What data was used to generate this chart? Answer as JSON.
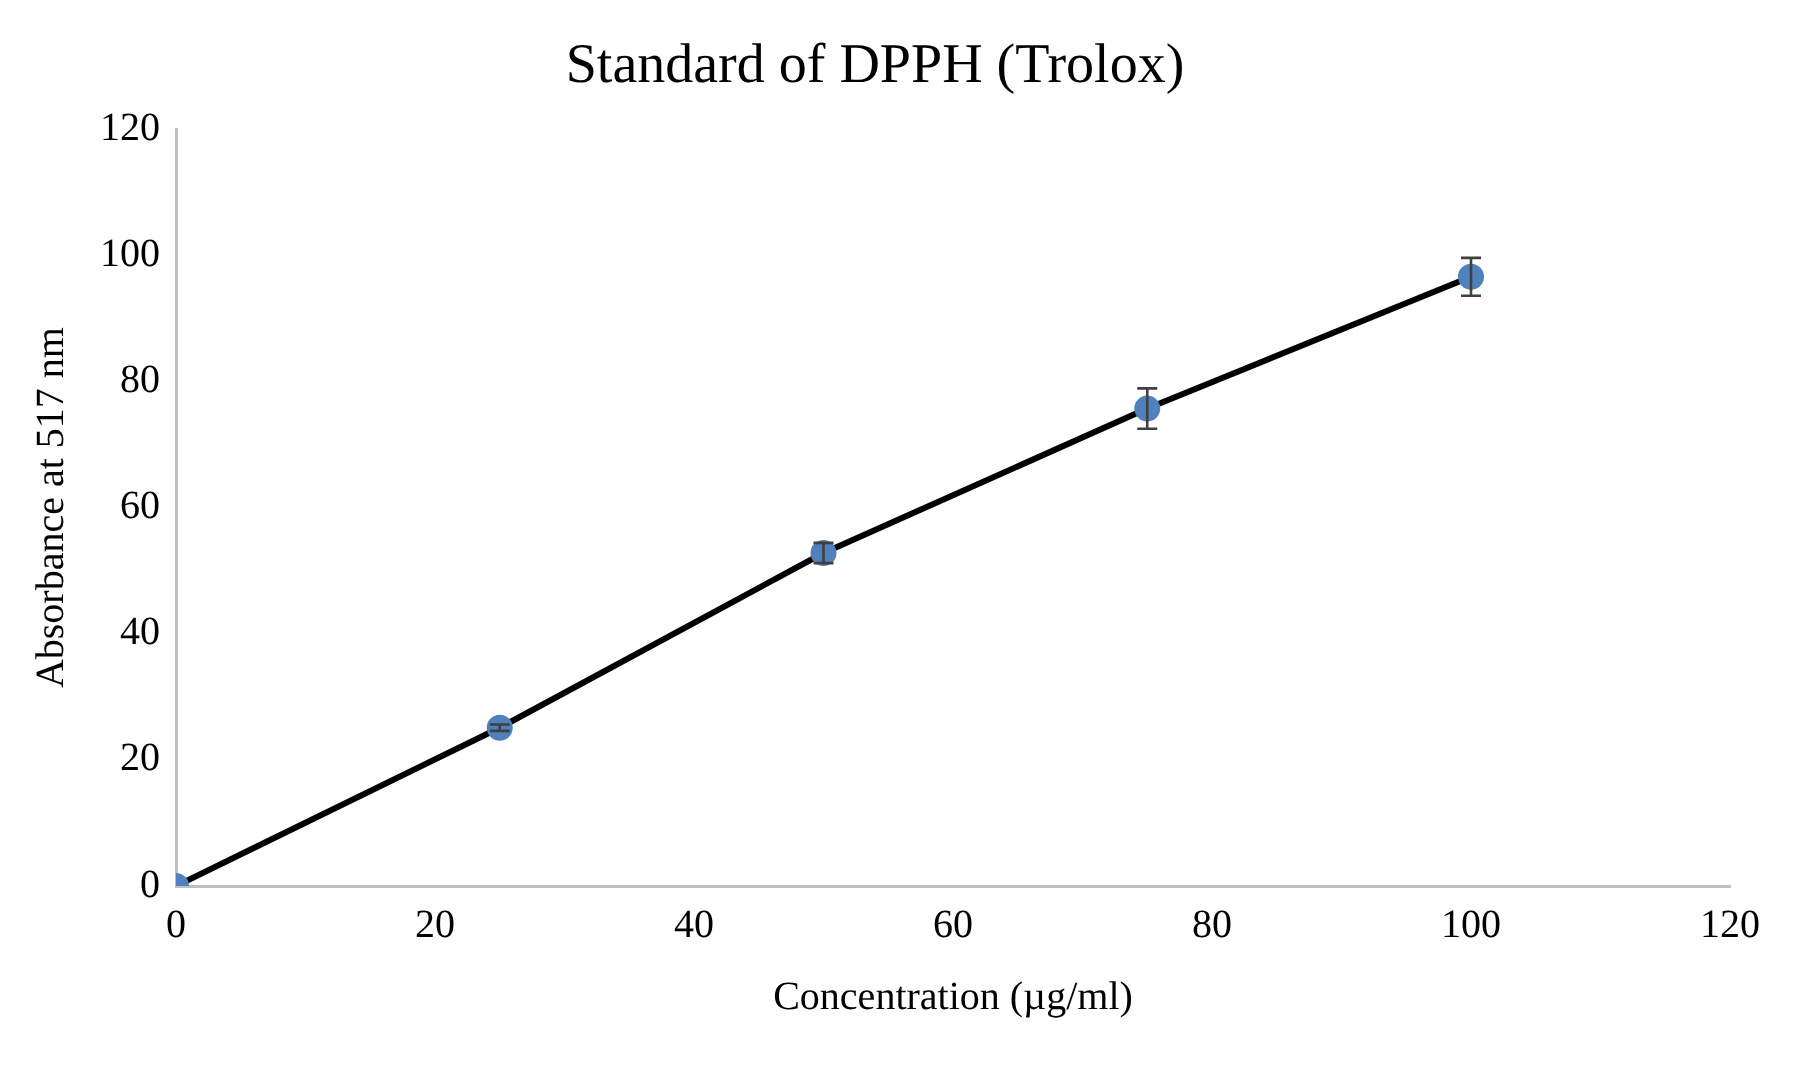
{
  "chart_data": {
    "type": "scatter",
    "title": "Standard of DPPH (Trolox)",
    "xlabel": "Concentration (µg/ml)",
    "ylabel": "Absorbance at 517 nm",
    "x": [
      0,
      25,
      50,
      75,
      100
    ],
    "series": [
      {
        "type": "line",
        "color": "#000000",
        "values": [
          0,
          25.1,
          52.8,
          75.7,
          96.6
        ],
        "marker": "none"
      },
      {
        "color": "#4f81bd",
        "values": [
          0,
          25.1,
          52.8,
          75.7,
          96.6
        ],
        "errors": [
          null,
          0.5,
          1.6,
          3.2,
          3
        ],
        "marker": "circle"
      }
    ],
    "xlim": [
      0,
      120
    ],
    "xticks": [
      0,
      20,
      40,
      60,
      80,
      100,
      120
    ],
    "ylim": [
      0,
      120
    ],
    "yticks": [
      0,
      20,
      40,
      60,
      80,
      100,
      120
    ],
    "grid": false,
    "legend": false
  }
}
